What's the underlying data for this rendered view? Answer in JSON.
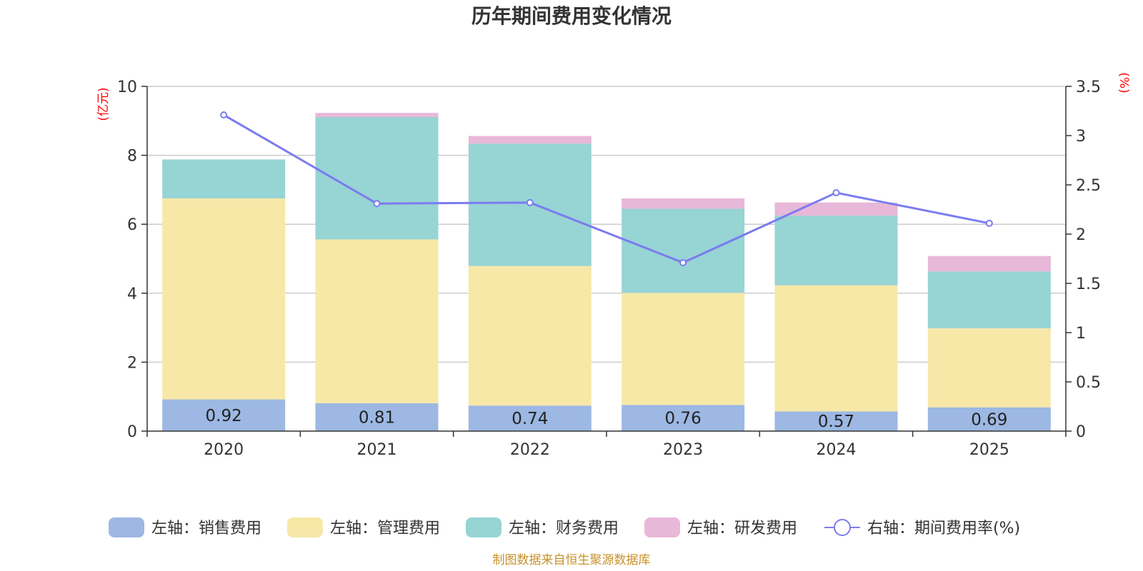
{
  "chart_data": {
    "type": "bar",
    "stacked": true,
    "title": "历年期间费用变化情况",
    "categories": [
      "2020",
      "2021",
      "2022",
      "2023",
      "2024",
      "2025"
    ],
    "left_axis": {
      "unit": "(亿元)",
      "ylim": [
        0,
        10
      ],
      "ticks": [
        "0",
        "2",
        "4",
        "6",
        "8",
        "10"
      ]
    },
    "right_axis": {
      "unit": "(%)",
      "ylim": [
        0,
        3.5
      ],
      "ticks": [
        "0",
        "0.5",
        "1",
        "1.5",
        "2",
        "2.5",
        "3",
        "3.5"
      ]
    },
    "series": [
      {
        "name": "左轴：销售费用",
        "axis": "left",
        "color": "#9cb8e3",
        "values": [
          0.92,
          0.81,
          0.74,
          0.76,
          0.57,
          0.69
        ],
        "labels": [
          "0.92",
          "0.81",
          "0.74",
          "0.76",
          "0.57",
          "0.69"
        ]
      },
      {
        "name": "左轴：管理费用",
        "axis": "left",
        "color": "#f7e8a8",
        "values": [
          5.83,
          4.75,
          4.05,
          3.25,
          3.66,
          2.29
        ]
      },
      {
        "name": "左轴：财务费用",
        "axis": "left",
        "color": "#97d4d4",
        "values": [
          1.13,
          3.55,
          3.55,
          2.44,
          2.02,
          1.65
        ]
      },
      {
        "name": "左轴：研发费用",
        "axis": "left",
        "color": "#e8b8d8",
        "values": [
          0.0,
          0.12,
          0.22,
          0.3,
          0.38,
          0.45
        ]
      },
      {
        "name": "右轴：期间费用率(%)",
        "axis": "right",
        "type": "line",
        "color": "#7b7bf0",
        "values": [
          3.21,
          2.31,
          2.32,
          1.71,
          2.42,
          2.11
        ]
      }
    ]
  },
  "source": "制图数据来自恒生聚源数据库"
}
